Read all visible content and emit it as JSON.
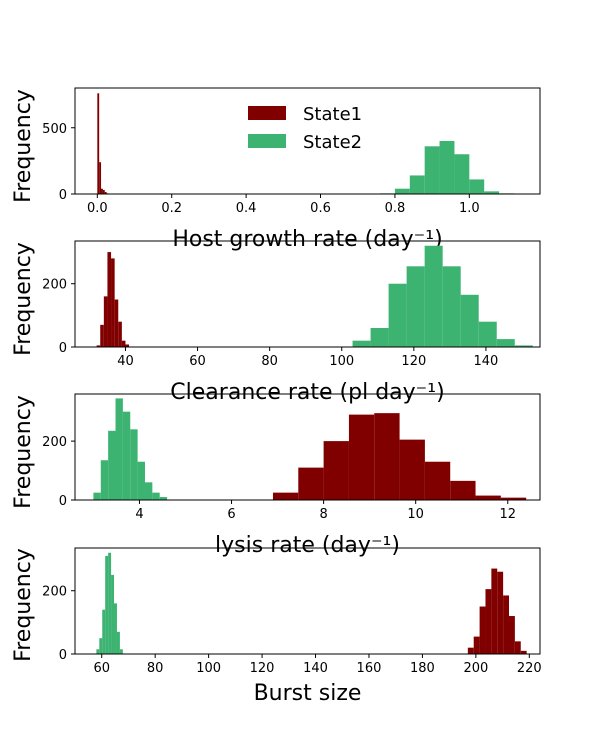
{
  "colors": {
    "state1": "#800000",
    "state2": "#3cb371"
  },
  "legend": {
    "state1": "State1",
    "state2": "State2"
  },
  "chart_data": [
    {
      "type": "bar",
      "subtype": "histogram",
      "xlabel": "Host growth rate (day⁻¹)",
      "ylabel": "Frequency",
      "xlim": [
        -0.06,
        1.19
      ],
      "ylim": [
        0,
        800
      ],
      "xticks": [
        0.0,
        0.2,
        0.4,
        0.6,
        0.8,
        1.0
      ],
      "xtick_labels": [
        "0.0",
        "0.2",
        "0.4",
        "0.6",
        "0.8",
        "1.0"
      ],
      "yticks": [
        0,
        500
      ],
      "ytick_labels": [
        "0",
        "500"
      ],
      "legend": "upper-center",
      "series": [
        {
          "name": "State1",
          "bins": [
            0.0,
            0.005,
            0.01,
            0.015,
            0.02,
            0.025,
            0.03
          ],
          "counts": [
            760,
            240,
            40,
            30,
            15,
            5
          ]
        },
        {
          "name": "State2",
          "bins": [
            0.76,
            0.8,
            0.84,
            0.88,
            0.92,
            0.96,
            1.0,
            1.04,
            1.08,
            1.12
          ],
          "counts": [
            5,
            40,
            140,
            360,
            400,
            300,
            110,
            20,
            5
          ]
        }
      ]
    },
    {
      "type": "bar",
      "subtype": "histogram",
      "xlabel": "Clearance rate (pl day⁻¹)",
      "ylabel": "Frequency",
      "xlim": [
        26,
        155
      ],
      "ylim": [
        0,
        335
      ],
      "xticks": [
        40,
        60,
        80,
        100,
        120,
        140
      ],
      "xtick_labels": [
        "40",
        "60",
        "80",
        "100",
        "120",
        "140"
      ],
      "yticks": [
        0,
        200
      ],
      "ytick_labels": [
        "0",
        "200"
      ],
      "series": [
        {
          "name": "State1",
          "bins": [
            32,
            33,
            34,
            35,
            36,
            37,
            38,
            39,
            40,
            41
          ],
          "counts": [
            5,
            70,
            160,
            300,
            280,
            150,
            80,
            20,
            8
          ]
        },
        {
          "name": "State2",
          "bins": [
            103,
            108,
            113,
            118,
            123,
            128,
            133,
            138,
            143,
            148,
            153
          ],
          "counts": [
            20,
            60,
            200,
            255,
            320,
            255,
            165,
            80,
            25,
            5
          ]
        }
      ]
    },
    {
      "type": "bar",
      "subtype": "histogram",
      "xlabel": "lysis rate (day⁻¹)",
      "ylabel": "Frequency",
      "xlim": [
        2.6,
        12.7
      ],
      "ylim": [
        0,
        360
      ],
      "xticks": [
        4,
        6,
        8,
        10,
        12
      ],
      "xtick_labels": [
        "4",
        "6",
        "8",
        "10",
        "12"
      ],
      "yticks": [
        0,
        200
      ],
      "ytick_labels": [
        "0",
        "200"
      ],
      "series": [
        {
          "name": "State1",
          "bins": [
            6.9,
            7.45,
            8.0,
            8.55,
            9.1,
            9.65,
            10.2,
            10.75,
            11.3,
            11.85,
            12.4
          ],
          "counts": [
            25,
            110,
            200,
            290,
            295,
            205,
            130,
            65,
            15,
            8
          ]
        },
        {
          "name": "State2",
          "bins": [
            3.0,
            3.16,
            3.32,
            3.48,
            3.64,
            3.8,
            3.96,
            4.12,
            4.28,
            4.44,
            4.6
          ],
          "counts": [
            25,
            135,
            235,
            345,
            300,
            240,
            130,
            60,
            25,
            10
          ]
        }
      ]
    },
    {
      "type": "bar",
      "subtype": "histogram",
      "xlabel": "Burst size",
      "ylabel": "Frequency",
      "xlim": [
        50,
        224
      ],
      "ylim": [
        0,
        335
      ],
      "xticks": [
        60,
        80,
        100,
        120,
        140,
        160,
        180,
        200,
        220
      ],
      "xtick_labels": [
        "60",
        "80",
        "100",
        "120",
        "140",
        "160",
        "180",
        "200",
        "220"
      ],
      "yticks": [
        0,
        200
      ],
      "ytick_labels": [
        "0",
        "200"
      ],
      "series": [
        {
          "name": "State1",
          "bins": [
            197,
            199.2,
            201.4,
            203.6,
            205.8,
            208.0,
            210.2,
            212.4,
            214.6,
            216.8,
            219
          ],
          "counts": [
            20,
            55,
            150,
            205,
            270,
            260,
            185,
            120,
            40,
            10
          ]
        },
        {
          "name": "State2",
          "bins": [
            58,
            59.1,
            60.2,
            61.3,
            62.4,
            63.5,
            64.6,
            65.7,
            66.8,
            67.9
          ],
          "counts": [
            15,
            50,
            140,
            310,
            320,
            250,
            160,
            70,
            15
          ]
        }
      ]
    }
  ]
}
